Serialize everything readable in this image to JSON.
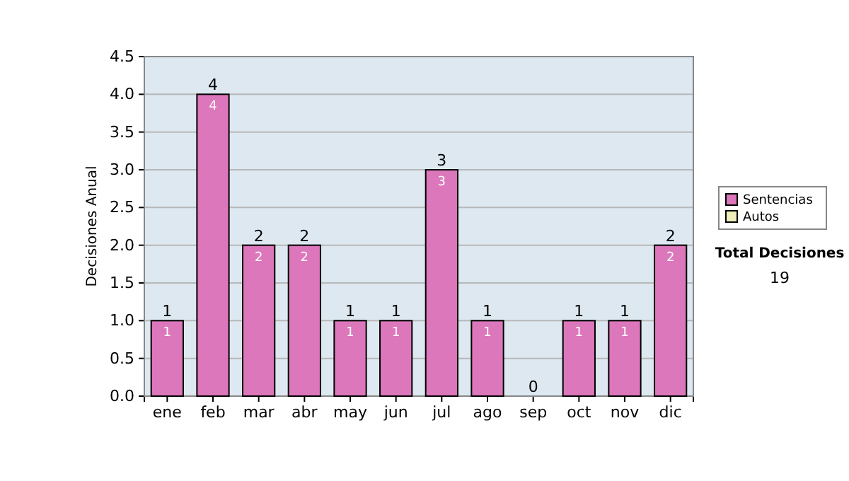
{
  "chart_data": {
    "type": "bar",
    "stacked": true,
    "ylabel": "Decisiones Anual",
    "categories": [
      "ene",
      "feb",
      "mar",
      "abr",
      "may",
      "jun",
      "jul",
      "ago",
      "sep",
      "oct",
      "nov",
      "dic"
    ],
    "series": [
      {
        "name": "Sentencias",
        "color": "#dd77bb",
        "values": [
          1,
          4,
          2,
          2,
          1,
          1,
          3,
          1,
          0,
          1,
          1,
          2
        ],
        "value_labels": [
          "1",
          "4",
          "2",
          "2",
          "1",
          "1",
          "3",
          "1",
          null,
          "1",
          "1",
          "2"
        ]
      },
      {
        "name": "Autos",
        "color": "#eeeebb",
        "values": [
          0,
          0,
          0,
          0,
          0,
          0,
          0,
          0,
          0,
          0,
          0,
          0
        ]
      }
    ],
    "totals": [
      "1",
      "4",
      "2",
      "2",
      "1",
      "1",
      "3",
      "1",
      "0",
      "1",
      "1",
      "2"
    ],
    "ylim": [
      0,
      4.5
    ],
    "yticks": [
      {
        "value": 0,
        "label": "0.0"
      },
      {
        "value": 0.5,
        "label": "0.5"
      },
      {
        "value": 1,
        "label": "1.0"
      },
      {
        "value": 1.5,
        "label": "1.5"
      },
      {
        "value": 2,
        "label": "2.0"
      },
      {
        "value": 2.5,
        "label": "2.5"
      },
      {
        "value": 3,
        "label": "3.0"
      },
      {
        "value": 3.5,
        "label": "3.5"
      },
      {
        "value": 4,
        "label": "4.0"
      },
      {
        "value": 4.5,
        "label": "4.5"
      }
    ],
    "grid": "y",
    "legend": "right",
    "annotations": [
      "Total Decisiones",
      "19"
    ]
  }
}
